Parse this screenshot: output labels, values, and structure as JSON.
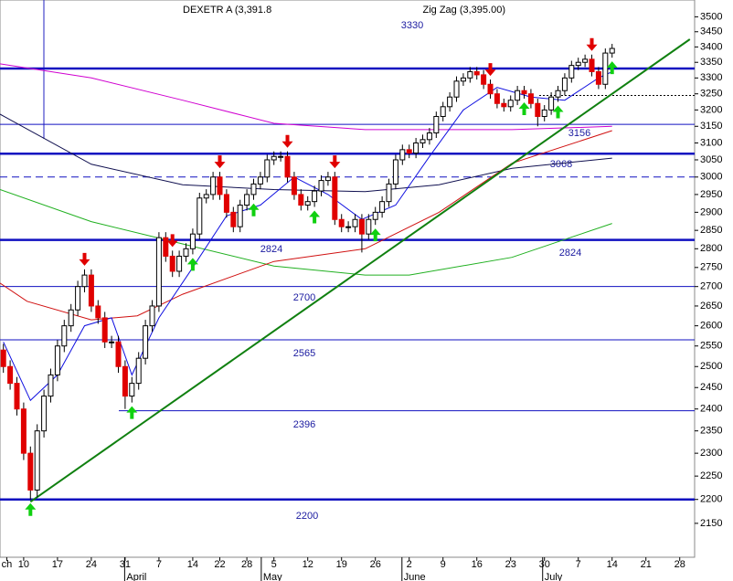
{
  "chart_data": {
    "type": "candlestick",
    "title": "DEXETR A (3,391.8",
    "subtitle": "Zig Zag (3,395.00)",
    "log_scale": true,
    "ylim": [
      2081,
      3557
    ],
    "yticks": [
      2150,
      2200,
      2250,
      2300,
      2350,
      2400,
      2450,
      2500,
      2550,
      2600,
      2650,
      2700,
      2750,
      2800,
      2850,
      2900,
      2950,
      3000,
      3050,
      3100,
      3150,
      3200,
      3250,
      3300,
      3350,
      3400,
      3450,
      3500
    ],
    "xlim": [
      -3.5,
      99.2
    ],
    "xticks": [
      {
        "value": -2.5,
        "label": "ch"
      },
      {
        "value": 0,
        "label": "10"
      },
      {
        "value": 5,
        "label": "17"
      },
      {
        "value": 10,
        "label": "24"
      },
      {
        "value": 15,
        "label": "31"
      },
      {
        "value": 20,
        "label": "7"
      },
      {
        "value": 25,
        "label": "14"
      },
      {
        "value": 29,
        "label": "22"
      },
      {
        "value": 33,
        "label": "28"
      },
      {
        "value": 37,
        "label": "5"
      },
      {
        "value": 42,
        "label": "12"
      },
      {
        "value": 47,
        "label": "19"
      },
      {
        "value": 52,
        "label": "26"
      },
      {
        "value": 57,
        "label": "2"
      },
      {
        "value": 62,
        "label": "9"
      },
      {
        "value": 67,
        "label": "16"
      },
      {
        "value": 72,
        "label": "23"
      },
      {
        "value": 77,
        "label": "30"
      },
      {
        "value": 82,
        "label": "7"
      },
      {
        "value": 87,
        "label": "14"
      },
      {
        "value": 92,
        "label": "21"
      },
      {
        "value": 97,
        "label": "28"
      }
    ],
    "months": [
      {
        "value": 15.2,
        "label": "April"
      },
      {
        "value": 35.4,
        "label": "May"
      },
      {
        "value": 56.2,
        "label": "June"
      },
      {
        "value": 77,
        "label": "July"
      }
    ],
    "x": [
      -3,
      -2,
      -1,
      0,
      1,
      2,
      3,
      4,
      5,
      6,
      7,
      8,
      9,
      10,
      11,
      12,
      13,
      14,
      15,
      16,
      17,
      18,
      19,
      20,
      21,
      22,
      23,
      24,
      25,
      26,
      27,
      28,
      29,
      30,
      31,
      32,
      33,
      34,
      35,
      36,
      37,
      38,
      39,
      40,
      41,
      42,
      43,
      44,
      45,
      46,
      47,
      48,
      49,
      50,
      51,
      52,
      53,
      54,
      55,
      56,
      57,
      58,
      59,
      60,
      61,
      62,
      63,
      64,
      65,
      66,
      67,
      68,
      69,
      70,
      71,
      72,
      73,
      74,
      75,
      76,
      77,
      78,
      79,
      80,
      81,
      82,
      83,
      84,
      85,
      86,
      87
    ],
    "candles": [
      [
        2540,
        2555,
        2485,
        2500
      ],
      [
        2500,
        2515,
        2445,
        2460
      ],
      [
        2460,
        2475,
        2385,
        2400
      ],
      [
        2400,
        2415,
        2285,
        2300
      ],
      [
        2300,
        2315,
        2200,
        2220
      ],
      [
        2220,
        2365,
        2205,
        2350
      ],
      [
        2350,
        2445,
        2335,
        2430
      ],
      [
        2430,
        2495,
        2415,
        2480
      ],
      [
        2480,
        2565,
        2465,
        2550
      ],
      [
        2550,
        2615,
        2535,
        2600
      ],
      [
        2600,
        2655,
        2585,
        2640
      ],
      [
        2640,
        2715,
        2625,
        2700
      ],
      [
        2700,
        2745,
        2685,
        2730
      ],
      [
        2730,
        2745,
        2635,
        2650
      ],
      [
        2650,
        2665,
        2605,
        2620
      ],
      [
        2620,
        2635,
        2545,
        2560
      ],
      [
        2560,
        2575,
        2545,
        2560
      ],
      [
        2560,
        2575,
        2485,
        2500
      ],
      [
        2500,
        2515,
        2400,
        2430
      ],
      [
        2430,
        2475,
        2415,
        2460
      ],
      [
        2460,
        2535,
        2445,
        2520
      ],
      [
        2520,
        2615,
        2505,
        2600
      ],
      [
        2600,
        2665,
        2585,
        2650
      ],
      [
        2650,
        2845,
        2635,
        2830
      ],
      [
        2830,
        2845,
        2765,
        2780
      ],
      [
        2780,
        2795,
        2725,
        2740
      ],
      [
        2740,
        2795,
        2725,
        2780
      ],
      [
        2780,
        2815,
        2765,
        2800
      ],
      [
        2800,
        2855,
        2785,
        2840
      ],
      [
        2840,
        2955,
        2825,
        2940
      ],
      [
        2940,
        2965,
        2925,
        2950
      ],
      [
        2950,
        3015,
        2935,
        3000
      ],
      [
        3000,
        3015,
        2935,
        2950
      ],
      [
        2950,
        2965,
        2885,
        2900
      ],
      [
        2900,
        2915,
        2845,
        2860
      ],
      [
        2860,
        2935,
        2845,
        2920
      ],
      [
        2920,
        2965,
        2905,
        2950
      ],
      [
        2950,
        2995,
        2935,
        2980
      ],
      [
        2980,
        3015,
        2965,
        3000
      ],
      [
        3000,
        3065,
        2985,
        3050
      ],
      [
        3050,
        3075,
        3035,
        3060
      ],
      [
        3060,
        3075,
        3045,
        3060
      ],
      [
        3060,
        3075,
        2985,
        3000
      ],
      [
        3000,
        3015,
        2935,
        2950
      ],
      [
        2950,
        2965,
        2905,
        2920
      ],
      [
        2920,
        2945,
        2905,
        2930
      ],
      [
        2930,
        2975,
        2915,
        2960
      ],
      [
        2960,
        3005,
        2945,
        2990
      ],
      [
        2990,
        3015,
        2975,
        3000
      ],
      [
        3000,
        3015,
        2865,
        2880
      ],
      [
        2880,
        2895,
        2845,
        2860
      ],
      [
        2860,
        2875,
        2845,
        2860
      ],
      [
        2860,
        2895,
        2845,
        2880
      ],
      [
        2880,
        2895,
        2790,
        2840
      ],
      [
        2840,
        2895,
        2825,
        2880
      ],
      [
        2880,
        2915,
        2865,
        2900
      ],
      [
        2900,
        2945,
        2885,
        2930
      ],
      [
        2930,
        2995,
        2915,
        2980
      ],
      [
        2980,
        3065,
        2965,
        3050
      ],
      [
        3050,
        3095,
        3035,
        3080
      ],
      [
        3080,
        3095,
        3055,
        3070
      ],
      [
        3070,
        3115,
        3055,
        3100
      ],
      [
        3100,
        3125,
        3085,
        3110
      ],
      [
        3110,
        3145,
        3095,
        3130
      ],
      [
        3130,
        3195,
        3115,
        3180
      ],
      [
        3180,
        3225,
        3165,
        3210
      ],
      [
        3210,
        3255,
        3195,
        3240
      ],
      [
        3240,
        3305,
        3225,
        3290
      ],
      [
        3290,
        3315,
        3275,
        3300
      ],
      [
        3300,
        3335,
        3285,
        3320
      ],
      [
        3320,
        3335,
        3295,
        3310
      ],
      [
        3310,
        3325,
        3265,
        3280
      ],
      [
        3280,
        3295,
        3235,
        3250
      ],
      [
        3250,
        3265,
        3205,
        3220
      ],
      [
        3220,
        3235,
        3195,
        3210
      ],
      [
        3210,
        3245,
        3195,
        3230
      ],
      [
        3230,
        3275,
        3215,
        3260
      ],
      [
        3260,
        3275,
        3235,
        3250
      ],
      [
        3250,
        3265,
        3205,
        3220
      ],
      [
        3220,
        3235,
        3150,
        3180
      ],
      [
        3180,
        3215,
        3165,
        3200
      ],
      [
        3200,
        3255,
        3185,
        3240
      ],
      [
        3240,
        3275,
        3225,
        3260
      ],
      [
        3260,
        3315,
        3245,
        3300
      ],
      [
        3300,
        3355,
        3285,
        3340
      ],
      [
        3340,
        3365,
        3325,
        3350
      ],
      [
        3350,
        3375,
        3335,
        3360
      ],
      [
        3360,
        3375,
        3305,
        3320
      ],
      [
        3320,
        3335,
        3265,
        3280
      ],
      [
        3280,
        3395,
        3265,
        3380
      ],
      [
        3380,
        3410,
        3365,
        3395
      ]
    ],
    "up_color": "#ffffff",
    "down_color": "#e00000",
    "series": [
      {
        "color": "#d000d0",
        "x": [
          -3.5,
          10,
          23.5,
          37,
          50.5,
          61.4,
          72.2,
          87
        ],
        "values": [
          3345,
          3300,
          3230,
          3159,
          3140,
          3140,
          3140,
          3150
        ]
      },
      {
        "color": "#101050",
        "x": [
          -3.5,
          10,
          23.5,
          37,
          50.5,
          61.4,
          72.2,
          87
        ],
        "values": [
          3187,
          3037,
          2978,
          2964,
          2958,
          2978,
          3025,
          3055
        ]
      },
      {
        "color": "#20b020",
        "x": [
          -3.5,
          10,
          23.5,
          37,
          50.5,
          57,
          72.2,
          87
        ],
        "values": [
          2964,
          2874,
          2813,
          2754,
          2730,
          2730,
          2777,
          2869
        ]
      },
      {
        "color": "#d01010",
        "x": [
          -3.5,
          0.5,
          10,
          16.8,
          23.5,
          37,
          50.5,
          61.4,
          72.2,
          87
        ],
        "values": [
          2709,
          2662,
          2615,
          2625,
          2680,
          2766,
          2800,
          2900,
          3040,
          3137
        ]
      },
      {
        "color": "#1010e0",
        "x": [
          -3,
          1,
          5,
          9,
          13,
          16,
          20,
          25,
          30,
          35,
          40,
          45,
          50,
          55,
          60,
          65,
          70,
          75,
          80,
          85,
          87
        ],
        "values": [
          2560,
          2420,
          2480,
          2600,
          2620,
          2480,
          2620,
          2750,
          2890,
          2920,
          3000,
          2950,
          2880,
          2920,
          3060,
          3200,
          3270,
          3240,
          3230,
          3300,
          3320
        ]
      }
    ],
    "trendline": {
      "color": "#108010",
      "x": [
        1,
        98.5
      ],
      "values": [
        2195,
        3425
      ]
    },
    "levels": {
      "values": [
        3330,
        3156,
        3068,
        3000,
        2824,
        2700,
        2565,
        2396,
        2200,
        3245
      ],
      "styles": [
        "thick",
        "thin",
        "thick",
        "dashed",
        "thick",
        "thin",
        "thin",
        "thin",
        "thick",
        "dotted"
      ]
    },
    "signals": {
      "down": [
        9,
        22,
        29,
        39,
        46,
        69,
        84
      ],
      "up": [
        1,
        16,
        25,
        34,
        43,
        52,
        74,
        79,
        87
      ]
    }
  }
}
